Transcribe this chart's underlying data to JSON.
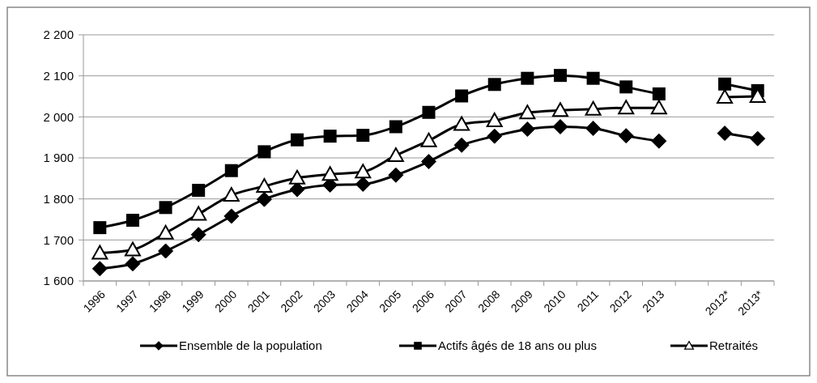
{
  "chart_data": {
    "type": "line",
    "categories": [
      "1996",
      "1997",
      "1998",
      "1999",
      "2000",
      "2001",
      "2002",
      "2003",
      "2004",
      "2005",
      "2006",
      "2007",
      "2008",
      "2009",
      "2010",
      "2011",
      "2012",
      "2013",
      null,
      "2012*",
      "2013*"
    ],
    "series": [
      {
        "name": "Ensemble de la population",
        "color": "#000000",
        "marker": "diamond",
        "values": [
          1630,
          1642,
          1673,
          1713,
          1758,
          1799,
          1823,
          1834,
          1836,
          1858,
          1891,
          1931,
          1953,
          1970,
          1976,
          1972,
          1954,
          1941,
          null,
          1960,
          1947
        ]
      },
      {
        "name": "Actifs âgés de 18 ans ou plus",
        "color": "#000000",
        "marker": "square",
        "values": [
          1730,
          1748,
          1779,
          1821,
          1869,
          1915,
          1944,
          1953,
          1955,
          1976,
          2011,
          2051,
          2079,
          2094,
          2101,
          2094,
          2073,
          2056,
          null,
          2080,
          2064
        ]
      },
      {
        "name": "Retraités",
        "color": "#000000",
        "marker": "triangle",
        "values": [
          1668,
          1676,
          1717,
          1763,
          1809,
          1831,
          1851,
          1860,
          1866,
          1906,
          1942,
          1982,
          1991,
          2010,
          2016,
          2019,
          2022,
          2022,
          null,
          2048,
          2050
        ]
      }
    ],
    "ylim": [
      1600,
      2200
    ],
    "yticks": [
      {
        "value": 1600,
        "label": "1 600"
      },
      {
        "value": 1700,
        "label": "1 700"
      },
      {
        "value": 1800,
        "label": "1 800"
      },
      {
        "value": 1900,
        "label": "1 900"
      },
      {
        "value": 2000,
        "label": "2 000"
      },
      {
        "value": 2100,
        "label": "2 100"
      },
      {
        "value": 2200,
        "label": "2 200"
      }
    ],
    "grid": "y",
    "legend": "bottom",
    "line_style": "solid"
  }
}
